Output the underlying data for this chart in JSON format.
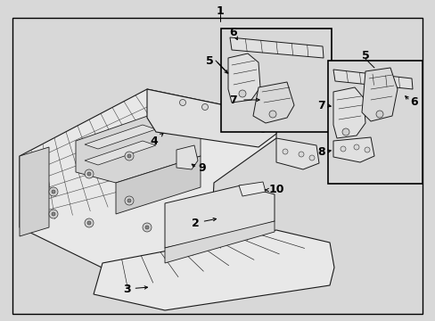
{
  "bg_color": "#d8d8d8",
  "diagram_bg": "#e0e0e0",
  "border_color": "#000000",
  "line_color": "#1a1a1a",
  "part_fill": "#ffffff",
  "part_fill_mid": "#e8e8e8",
  "part_fill_dark": "#d0d0d0",
  "title": "1",
  "figsize": [
    4.89,
    3.6
  ],
  "dpi": 100
}
